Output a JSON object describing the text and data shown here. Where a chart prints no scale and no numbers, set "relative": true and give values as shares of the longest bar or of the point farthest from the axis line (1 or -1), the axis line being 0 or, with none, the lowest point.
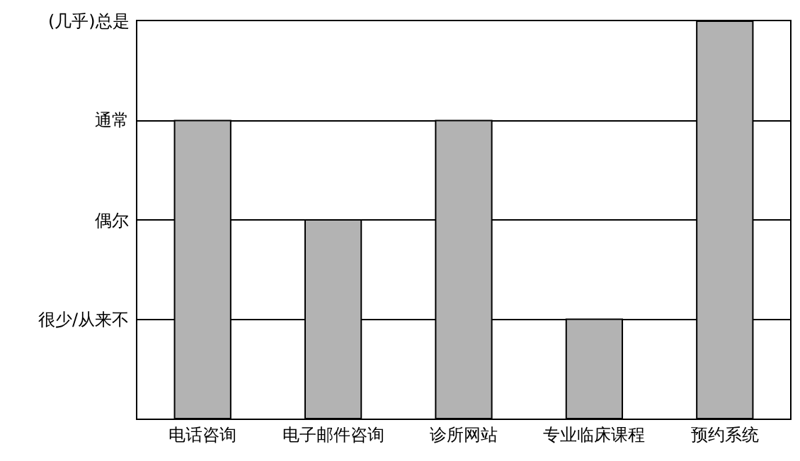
{
  "chart_data": {
    "type": "bar",
    "categories": [
      "电话咨询",
      "电子邮件咨询",
      "诊所网站",
      "专业临床课程",
      "预约系统"
    ],
    "values": [
      0.75,
      0.5,
      0.75,
      0.25,
      1
    ],
    "color": "#b3b3b3",
    "relative": true,
    "annotations": [
      "很少/从来不",
      "偶尔",
      "通常",
      "(几乎)总是"
    ],
    "grid": "y"
  }
}
